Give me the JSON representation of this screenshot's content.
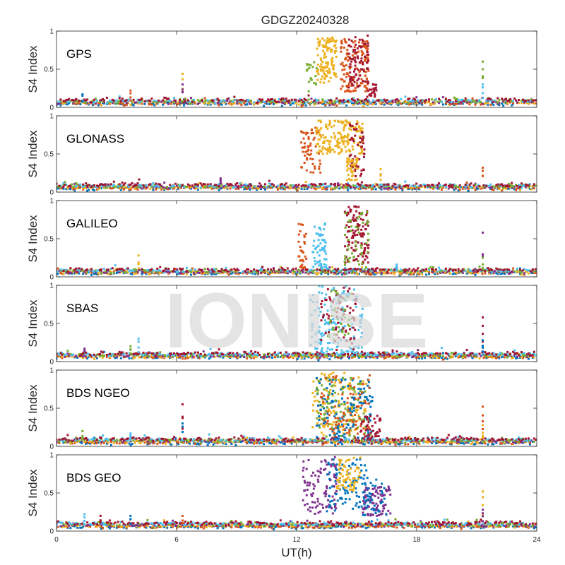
{
  "chart_data": {
    "type": "scatter",
    "title": "GDGZ20240328",
    "xlabel": "UT(h)",
    "ylabel": "S4 Index",
    "xlim": [
      0,
      24
    ],
    "ylim": [
      0,
      1
    ],
    "xticks": [
      "0",
      "6",
      "12",
      "18",
      "24"
    ],
    "yticks": [
      "0",
      "0.5",
      "1"
    ],
    "watermark": "IONISE",
    "colors": [
      "#0072BD",
      "#D95319",
      "#EDB120",
      "#7E2F8E",
      "#77AC30",
      "#4DBEEE",
      "#A2142F"
    ],
    "panels": [
      {
        "label": "GPS",
        "baseline": 0.07,
        "quiet_spikes": [
          [
            1.3,
            0.17
          ],
          [
            3.7,
            0.22
          ],
          [
            6.3,
            0.44
          ],
          [
            6.3,
            0.3
          ],
          [
            21.3,
            0.6
          ],
          [
            21.3,
            0.3
          ]
        ],
        "events": [
          {
            "x0": 13.0,
            "x1": 14.0,
            "y": 0.62,
            "spread": 0.3,
            "color": 2,
            "n": 120
          },
          {
            "x0": 14.2,
            "x1": 15.6,
            "y": 0.55,
            "spread": 0.35,
            "color": 1,
            "n": 130
          },
          {
            "x0": 14.6,
            "x1": 15.6,
            "y": 0.6,
            "spread": 0.35,
            "color": 6,
            "n": 80
          },
          {
            "x0": 12.5,
            "x1": 13.0,
            "y": 0.4,
            "spread": 0.2,
            "color": 4,
            "n": 20
          },
          {
            "x0": 15.5,
            "x1": 16.0,
            "y": 0.22,
            "spread": 0.1,
            "color": 6,
            "n": 25
          }
        ]
      },
      {
        "label": "GLONASS",
        "baseline": 0.07,
        "quiet_spikes": [
          [
            21.3,
            0.32
          ],
          [
            16.2,
            0.3
          ],
          [
            8.2,
            0.18
          ]
        ],
        "events": [
          {
            "x0": 12.2,
            "x1": 13.2,
            "y": 0.55,
            "spread": 0.3,
            "color": 1,
            "n": 60
          },
          {
            "x0": 13.0,
            "x1": 15.3,
            "y": 0.72,
            "spread": 0.22,
            "color": 2,
            "n": 170
          },
          {
            "x0": 14.6,
            "x1": 15.4,
            "y": 0.55,
            "spread": 0.35,
            "color": 6,
            "n": 50
          },
          {
            "x0": 14.5,
            "x1": 15.1,
            "y": 0.3,
            "spread": 0.15,
            "color": 2,
            "n": 40
          }
        ]
      },
      {
        "label": "GALILEO",
        "baseline": 0.07,
        "quiet_spikes": [
          [
            4.1,
            0.28
          ],
          [
            21.3,
            0.58
          ],
          [
            21.3,
            0.25
          ],
          [
            17.0,
            0.16
          ]
        ],
        "events": [
          {
            "x0": 12.1,
            "x1": 12.5,
            "y": 0.4,
            "spread": 0.3,
            "color": 1,
            "n": 30
          },
          {
            "x0": 12.8,
            "x1": 13.5,
            "y": 0.4,
            "spread": 0.3,
            "color": 5,
            "n": 60
          },
          {
            "x0": 14.4,
            "x1": 15.6,
            "y": 0.55,
            "spread": 0.38,
            "color": 6,
            "n": 120
          },
          {
            "x0": 14.4,
            "x1": 15.6,
            "y": 0.5,
            "spread": 0.35,
            "color": 4,
            "n": 50
          }
        ]
      },
      {
        "label": "SBAS",
        "baseline": 0.08,
        "quiet_spikes": [
          [
            1.4,
            0.17
          ],
          [
            3.7,
            0.2
          ],
          [
            4.1,
            0.3
          ],
          [
            21.3,
            0.58
          ],
          [
            21.3,
            0.28
          ]
        ],
        "events": [
          {
            "x0": 12.7,
            "x1": 15.3,
            "y": 0.55,
            "spread": 0.45,
            "color": 5,
            "n": 150
          },
          {
            "x0": 13.2,
            "x1": 15.0,
            "y": 0.6,
            "spread": 0.38,
            "color": 6,
            "n": 70
          },
          {
            "x0": 13.5,
            "x1": 14.8,
            "y": 0.6,
            "spread": 0.35,
            "color": 4,
            "n": 40
          }
        ]
      },
      {
        "label": "BDS NGEO",
        "baseline": 0.07,
        "quiet_spikes": [
          [
            1.3,
            0.2
          ],
          [
            3.7,
            0.17
          ],
          [
            6.3,
            0.55
          ],
          [
            6.3,
            0.3
          ],
          [
            21.3,
            0.52
          ],
          [
            21.3,
            0.28
          ]
        ],
        "events": [
          {
            "x0": 12.8,
            "x1": 15.5,
            "y": 0.55,
            "spread": 0.42,
            "color": 2,
            "n": 150
          },
          {
            "x0": 13.0,
            "x1": 15.8,
            "y": 0.5,
            "spread": 0.4,
            "color": 0,
            "n": 150
          },
          {
            "x0": 13.0,
            "x1": 15.5,
            "y": 0.5,
            "spread": 0.4,
            "color": 4,
            "n": 80
          },
          {
            "x0": 13.2,
            "x1": 15.8,
            "y": 0.55,
            "spread": 0.4,
            "color": 1,
            "n": 80
          },
          {
            "x0": 15.2,
            "x1": 16.2,
            "y": 0.25,
            "spread": 0.15,
            "color": 6,
            "n": 40
          }
        ]
      },
      {
        "label": "BDS GEO",
        "baseline": 0.08,
        "quiet_spikes": [
          [
            1.4,
            0.22
          ],
          [
            2.2,
            0.2
          ],
          [
            3.7,
            0.2
          ],
          [
            6.3,
            0.2
          ],
          [
            21.3,
            0.52
          ],
          [
            21.3,
            0.28
          ]
        ],
        "events": [
          {
            "x0": 12.3,
            "x1": 14.0,
            "y": 0.6,
            "spread": 0.38,
            "color": 3,
            "n": 100
          },
          {
            "x0": 13.5,
            "x1": 15.5,
            "y": 0.6,
            "spread": 0.35,
            "color": 0,
            "n": 90
          },
          {
            "x0": 14.0,
            "x1": 15.2,
            "y": 0.75,
            "spread": 0.22,
            "color": 2,
            "n": 70
          },
          {
            "x0": 15.3,
            "x1": 16.7,
            "y": 0.4,
            "spread": 0.2,
            "color": 3,
            "n": 90
          },
          {
            "x0": 15.3,
            "x1": 16.5,
            "y": 0.45,
            "spread": 0.25,
            "color": 0,
            "n": 40
          }
        ]
      }
    ]
  }
}
